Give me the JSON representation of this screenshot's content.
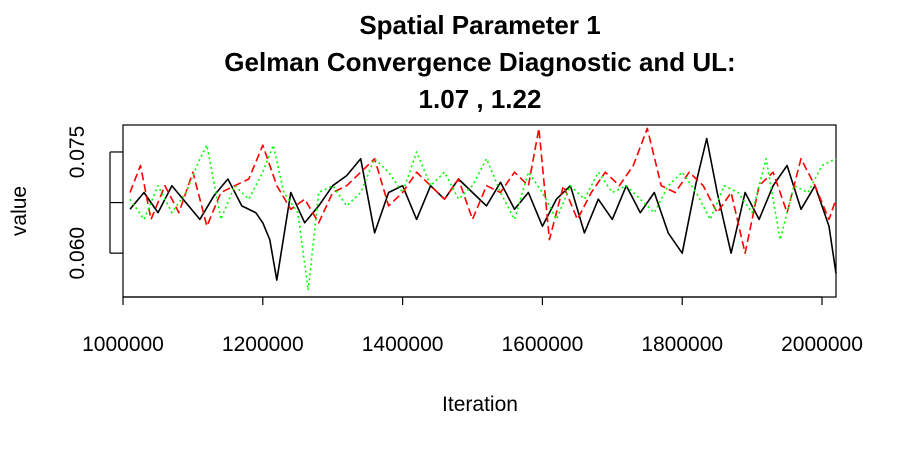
{
  "chart_data": {
    "type": "line",
    "title": [
      "Spatial Parameter 1",
      "Gelman Convergence Diagnostic and UL:",
      "1.07 ,  1.22"
    ],
    "xlabel": "Iteration",
    "ylabel": "value",
    "xlim": [
      1000000,
      2020000
    ],
    "ylim": [
      0.0535,
      0.079
    ],
    "x_ticks": [
      1000000,
      1200000,
      1400000,
      1600000,
      1800000,
      2000000
    ],
    "x_tick_labels": [
      "1000000",
      "1200000",
      "1400000",
      "1600000",
      "1800000",
      "2000000"
    ],
    "y_ticks": [
      0.06,
      0.0675,
      0.075
    ],
    "y_tick_labels": [
      "0.060",
      "",
      "0.075"
    ],
    "grid": false,
    "legend": "none",
    "series": [
      {
        "color": "#000000",
        "dash": "solid",
        "x": [
          1010000,
          1030000,
          1050000,
          1070000,
          1090000,
          1110000,
          1130000,
          1150000,
          1170000,
          1190000,
          1200000,
          1210000,
          1220000,
          1240000,
          1260000,
          1280000,
          1300000,
          1320000,
          1340000,
          1360000,
          1380000,
          1400000,
          1420000,
          1440000,
          1460000,
          1480000,
          1500000,
          1520000,
          1540000,
          1560000,
          1580000,
          1600000,
          1620000,
          1640000,
          1660000,
          1680000,
          1700000,
          1720000,
          1740000,
          1760000,
          1780000,
          1800000,
          1820000,
          1835000,
          1850000,
          1870000,
          1890000,
          1910000,
          1930000,
          1950000,
          1970000,
          1990000,
          2010000,
          2020000
        ],
        "values": [
          0.0665,
          0.069,
          0.066,
          0.07,
          0.0675,
          0.065,
          0.0685,
          0.071,
          0.067,
          0.066,
          0.0645,
          0.062,
          0.056,
          0.069,
          0.0645,
          0.067,
          0.07,
          0.0715,
          0.074,
          0.063,
          0.069,
          0.07,
          0.065,
          0.07,
          0.068,
          0.071,
          0.069,
          0.067,
          0.0705,
          0.0665,
          0.069,
          0.064,
          0.068,
          0.07,
          0.063,
          0.068,
          0.065,
          0.07,
          0.066,
          0.069,
          0.063,
          0.06,
          0.0705,
          0.077,
          0.069,
          0.06,
          0.069,
          0.065,
          0.07,
          0.073,
          0.0665,
          0.07,
          0.064,
          0.057
        ]
      },
      {
        "color": "#ff0000",
        "dash": "8,4",
        "x": [
          1010000,
          1025000,
          1040000,
          1060000,
          1080000,
          1100000,
          1120000,
          1140000,
          1160000,
          1180000,
          1200000,
          1220000,
          1240000,
          1260000,
          1280000,
          1300000,
          1320000,
          1340000,
          1360000,
          1380000,
          1400000,
          1420000,
          1440000,
          1460000,
          1480000,
          1500000,
          1520000,
          1540000,
          1560000,
          1580000,
          1595000,
          1610000,
          1630000,
          1650000,
          1670000,
          1690000,
          1710000,
          1730000,
          1750000,
          1770000,
          1790000,
          1810000,
          1830000,
          1850000,
          1870000,
          1890000,
          1910000,
          1930000,
          1950000,
          1970000,
          1990000,
          2010000,
          2020000
        ],
        "values": [
          0.069,
          0.073,
          0.065,
          0.07,
          0.066,
          0.072,
          0.064,
          0.069,
          0.07,
          0.071,
          0.076,
          0.07,
          0.0665,
          0.068,
          0.0645,
          0.069,
          0.07,
          0.072,
          0.074,
          0.067,
          0.069,
          0.072,
          0.07,
          0.068,
          0.071,
          0.065,
          0.07,
          0.069,
          0.072,
          0.07,
          0.0785,
          0.062,
          0.07,
          0.065,
          0.069,
          0.072,
          0.07,
          0.073,
          0.0785,
          0.07,
          0.069,
          0.072,
          0.07,
          0.066,
          0.069,
          0.06,
          0.07,
          0.072,
          0.066,
          0.074,
          0.07,
          0.065,
          0.068
        ]
      },
      {
        "color": "#00ff00",
        "dash": "2,3",
        "x": [
          1010000,
          1030000,
          1050000,
          1070000,
          1090000,
          1110000,
          1120000,
          1140000,
          1160000,
          1180000,
          1200000,
          1215000,
          1230000,
          1250000,
          1265000,
          1280000,
          1300000,
          1320000,
          1340000,
          1360000,
          1380000,
          1400000,
          1420000,
          1440000,
          1460000,
          1480000,
          1500000,
          1520000,
          1540000,
          1560000,
          1580000,
          1600000,
          1620000,
          1640000,
          1660000,
          1680000,
          1700000,
          1720000,
          1740000,
          1760000,
          1780000,
          1800000,
          1820000,
          1840000,
          1860000,
          1880000,
          1900000,
          1920000,
          1940000,
          1960000,
          1980000,
          2000000,
          2020000
        ],
        "values": [
          0.068,
          0.065,
          0.07,
          0.066,
          0.069,
          0.074,
          0.076,
          0.065,
          0.07,
          0.068,
          0.072,
          0.076,
          0.069,
          0.066,
          0.0545,
          0.069,
          0.07,
          0.067,
          0.069,
          0.074,
          0.072,
          0.069,
          0.075,
          0.07,
          0.072,
          0.068,
          0.07,
          0.074,
          0.069,
          0.065,
          0.072,
          0.069,
          0.065,
          0.07,
          0.068,
          0.072,
          0.069,
          0.07,
          0.068,
          0.066,
          0.07,
          0.072,
          0.069,
          0.065,
          0.07,
          0.069,
          0.066,
          0.074,
          0.062,
          0.07,
          0.069,
          0.073,
          0.074
        ]
      }
    ]
  }
}
